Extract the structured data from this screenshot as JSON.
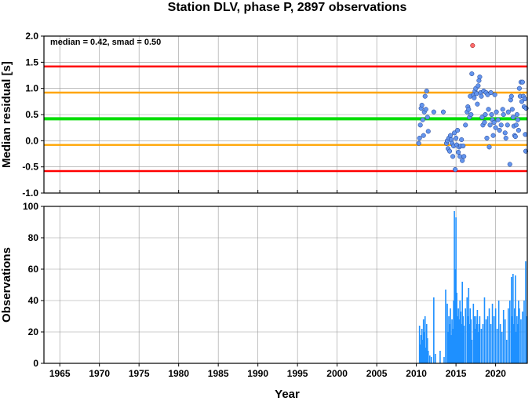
{
  "chart_data": [
    {
      "type": "scatter",
      "title": "Station DLV, phase P, 2897 observations",
      "ylabel": "Median residual [s]",
      "annotation": "median = 0.42, smad = 0.50",
      "xlim": [
        1963,
        2024
      ],
      "ylim": [
        -1.0,
        2.0
      ],
      "x_ticks": [
        "1965",
        "1970",
        "1975",
        "1980",
        "1985",
        "1990",
        "1995",
        "2000",
        "2005",
        "2010",
        "2015",
        "2020"
      ],
      "y_ticks": [
        "-1.0",
        "-0.5",
        "0.0",
        "0.5",
        "1.0",
        "1.5",
        "2.0"
      ],
      "grid": true,
      "reference_lines": [
        {
          "y": 0.42,
          "color": "#00dd00",
          "role": "median"
        },
        {
          "y": 0.92,
          "color": "#ffa500",
          "role": "median + 1 smad"
        },
        {
          "y": -0.08,
          "color": "#ffa500",
          "role": "median - 1 smad"
        },
        {
          "y": 1.42,
          "color": "#ff0000",
          "role": "median + 2 smad"
        },
        {
          "y": -0.58,
          "color": "#ff0000",
          "role": "median - 2 smad"
        }
      ],
      "points": [
        [
          2010.3,
          -0.05
        ],
        [
          2010.4,
          0.05
        ],
        [
          2010.5,
          0.3
        ],
        [
          2010.6,
          0.62
        ],
        [
          2010.7,
          0.68
        ],
        [
          2010.8,
          0.4
        ],
        [
          2010.9,
          0.1
        ],
        [
          2011.0,
          0.55
        ],
        [
          2011.1,
          0.85
        ],
        [
          2011.2,
          0.6
        ],
        [
          2011.3,
          0.95
        ],
        [
          2011.4,
          0.45
        ],
        [
          2011.5,
          0.18
        ],
        [
          2012.2,
          0.55
        ],
        [
          2013.4,
          0.55
        ],
        [
          2013.8,
          -0.05
        ],
        [
          2013.9,
          0.0
        ],
        [
          2014.0,
          -0.15
        ],
        [
          2014.1,
          0.05
        ],
        [
          2014.2,
          -0.2
        ],
        [
          2014.3,
          0.1
        ],
        [
          2014.4,
          0.02
        ],
        [
          2014.5,
          -0.05
        ],
        [
          2014.6,
          -0.3
        ],
        [
          2014.7,
          -0.1
        ],
        [
          2014.8,
          0.15
        ],
        [
          2014.9,
          -0.55
        ],
        [
          2015.0,
          0.05
        ],
        [
          2015.1,
          -0.08
        ],
        [
          2015.2,
          0.2
        ],
        [
          2015.3,
          -0.22
        ],
        [
          2015.4,
          -0.12
        ],
        [
          2015.5,
          -0.3
        ],
        [
          2015.6,
          -0.1
        ],
        [
          2015.7,
          0.02
        ],
        [
          2015.8,
          -0.38
        ],
        [
          2015.9,
          -0.1
        ],
        [
          2016.0,
          -0.3
        ],
        [
          2016.2,
          0.3
        ],
        [
          2016.4,
          0.55
        ],
        [
          2016.5,
          0.65
        ],
        [
          2016.6,
          0.6
        ],
        [
          2016.7,
          0.45
        ],
        [
          2016.8,
          0.85
        ],
        [
          2016.9,
          0.5
        ],
        [
          2017.0,
          1.28
        ],
        [
          2017.2,
          0.88
        ],
        [
          2017.3,
          0.82
        ],
        [
          2017.4,
          0.95
        ],
        [
          2017.5,
          1.0
        ],
        [
          2017.6,
          0.9
        ],
        [
          2017.7,
          0.7
        ],
        [
          2017.8,
          1.05
        ],
        [
          2017.9,
          1.15
        ],
        [
          2018.0,
          1.22
        ],
        [
          2018.1,
          0.92
        ],
        [
          2018.2,
          0.85
        ],
        [
          2018.3,
          0.45
        ],
        [
          2018.4,
          0.3
        ],
        [
          2018.5,
          0.95
        ],
        [
          2018.6,
          0.35
        ],
        [
          2018.7,
          0.5
        ],
        [
          2018.8,
          0.92
        ],
        [
          2018.9,
          0.05
        ],
        [
          2019.0,
          0.88
        ],
        [
          2019.1,
          0.6
        ],
        [
          2019.2,
          -0.12
        ],
        [
          2019.3,
          0.3
        ],
        [
          2019.4,
          0.92
        ],
        [
          2019.5,
          0.5
        ],
        [
          2019.6,
          0.4
        ],
        [
          2019.7,
          0.1
        ],
        [
          2019.8,
          0.35
        ],
        [
          2019.9,
          0.88
        ],
        [
          2020.0,
          0.25
        ],
        [
          2020.1,
          0.55
        ],
        [
          2020.3,
          0.4
        ],
        [
          2020.5,
          0.2
        ],
        [
          2020.7,
          0.3
        ],
        [
          2020.9,
          0.6
        ],
        [
          2021.0,
          0.5
        ],
        [
          2021.2,
          0.15
        ],
        [
          2021.3,
          0.05
        ],
        [
          2021.5,
          0.3
        ],
        [
          2021.6,
          0.55
        ],
        [
          2021.8,
          -0.45
        ],
        [
          2021.9,
          0.78
        ],
        [
          2022.0,
          0.85
        ],
        [
          2022.1,
          0.6
        ],
        [
          2022.2,
          0.45
        ],
        [
          2022.3,
          0.28
        ],
        [
          2022.4,
          0.1
        ],
        [
          2022.5,
          0.08
        ],
        [
          2022.6,
          0.3
        ],
        [
          2022.7,
          0.5
        ],
        [
          2022.8,
          0.4
        ],
        [
          2022.9,
          0.2
        ],
        [
          2023.0,
          1.0
        ],
        [
          2023.1,
          0.85
        ],
        [
          2023.2,
          1.12
        ],
        [
          2023.3,
          0.75
        ],
        [
          2023.4,
          1.12
        ],
        [
          2023.5,
          0.85
        ],
        [
          2023.6,
          0.65
        ],
        [
          2023.7,
          0.8
        ],
        [
          2023.75,
          0.12
        ],
        [
          2023.8,
          -0.2
        ],
        [
          2023.85,
          0.62
        ]
      ],
      "outliers": [
        [
          2017.1,
          1.82
        ]
      ],
      "point_color": "#6495ed",
      "outlier_color": "#ff6a6a"
    },
    {
      "type": "bar",
      "xlabel": "Year",
      "ylabel": "Observations",
      "xlim": [
        1963,
        2024
      ],
      "ylim": [
        0,
        100
      ],
      "x_ticks": [
        "1965",
        "1970",
        "1975",
        "1980",
        "1985",
        "1990",
        "1995",
        "2000",
        "2005",
        "2010",
        "2015",
        "2020"
      ],
      "y_ticks": [
        "0",
        "20",
        "40",
        "60",
        "80",
        "100"
      ],
      "grid": true,
      "bar_color": "#1e90ff",
      "bars": [
        [
          2010.4,
          24
        ],
        [
          2010.5,
          12
        ],
        [
          2010.6,
          18
        ],
        [
          2010.7,
          22
        ],
        [
          2010.8,
          15
        ],
        [
          2010.9,
          28
        ],
        [
          2011.0,
          20
        ],
        [
          2011.1,
          30
        ],
        [
          2011.2,
          10
        ],
        [
          2011.3,
          25
        ],
        [
          2011.4,
          16
        ],
        [
          2011.5,
          8
        ],
        [
          2011.7,
          5
        ],
        [
          2011.9,
          4
        ],
        [
          2012.2,
          42
        ],
        [
          2012.4,
          6
        ],
        [
          2013.0,
          8
        ],
        [
          2013.5,
          4
        ],
        [
          2013.7,
          47
        ],
        [
          2013.9,
          38
        ],
        [
          2014.0,
          20
        ],
        [
          2014.1,
          30
        ],
        [
          2014.2,
          25
        ],
        [
          2014.3,
          35
        ],
        [
          2014.4,
          18
        ],
        [
          2014.5,
          28
        ],
        [
          2014.6,
          22
        ],
        [
          2014.7,
          40
        ],
        [
          2014.8,
          97
        ],
        [
          2014.9,
          60
        ],
        [
          2015.0,
          93
        ],
        [
          2015.1,
          45
        ],
        [
          2015.2,
          30
        ],
        [
          2015.3,
          35
        ],
        [
          2015.4,
          28
        ],
        [
          2015.5,
          40
        ],
        [
          2015.6,
          33
        ],
        [
          2015.7,
          25
        ],
        [
          2015.8,
          52
        ],
        [
          2015.9,
          30
        ],
        [
          2016.0,
          24
        ],
        [
          2016.2,
          35
        ],
        [
          2016.4,
          42
        ],
        [
          2016.5,
          30
        ],
        [
          2016.6,
          48
        ],
        [
          2016.7,
          25
        ],
        [
          2016.8,
          35
        ],
        [
          2016.9,
          28
        ],
        [
          2017.0,
          15
        ],
        [
          2017.2,
          38
        ],
        [
          2017.3,
          30
        ],
        [
          2017.4,
          22
        ],
        [
          2017.5,
          30
        ],
        [
          2017.6,
          25
        ],
        [
          2017.7,
          34
        ],
        [
          2017.8,
          20
        ],
        [
          2017.9,
          25
        ],
        [
          2018.0,
          30
        ],
        [
          2018.2,
          22
        ],
        [
          2018.4,
          25
        ],
        [
          2018.6,
          42
        ],
        [
          2018.8,
          28
        ],
        [
          2019.0,
          30
        ],
        [
          2019.2,
          35
        ],
        [
          2019.4,
          25
        ],
        [
          2019.6,
          38
        ],
        [
          2019.8,
          30
        ],
        [
          2020.0,
          35
        ],
        [
          2020.2,
          22
        ],
        [
          2020.4,
          40
        ],
        [
          2020.6,
          25
        ],
        [
          2020.8,
          20
        ],
        [
          2021.0,
          34
        ],
        [
          2021.2,
          28
        ],
        [
          2021.4,
          15
        ],
        [
          2021.6,
          35
        ],
        [
          2021.8,
          40
        ],
        [
          2022.0,
          55
        ],
        [
          2022.1,
          30
        ],
        [
          2022.2,
          57
        ],
        [
          2022.3,
          25
        ],
        [
          2022.4,
          35
        ],
        [
          2022.5,
          56
        ],
        [
          2022.6,
          20
        ],
        [
          2022.7,
          30
        ],
        [
          2022.8,
          25
        ],
        [
          2022.9,
          40
        ],
        [
          2023.0,
          35
        ],
        [
          2023.2,
          28
        ],
        [
          2023.4,
          33
        ],
        [
          2023.6,
          40
        ],
        [
          2023.8,
          65
        ],
        [
          2023.9,
          30
        ]
      ]
    }
  ]
}
